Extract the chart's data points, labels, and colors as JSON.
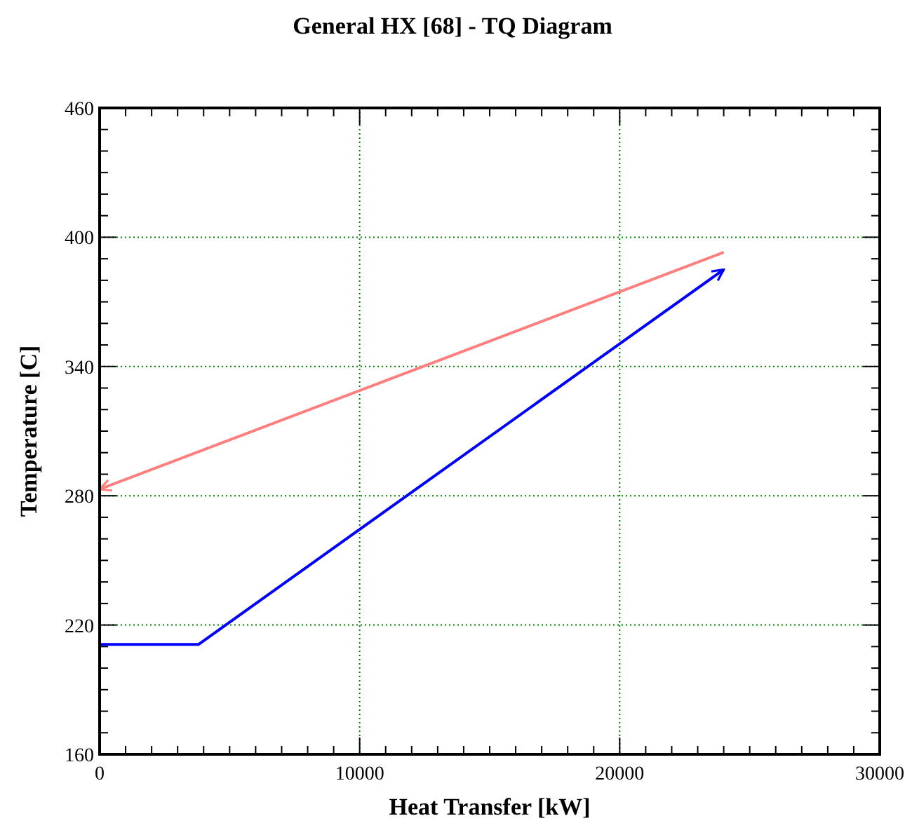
{
  "chart_data": {
    "type": "line",
    "title": "General HX [68]  - TQ Diagram",
    "xlabel": "Heat Transfer [kW]",
    "ylabel": "Temperature [C]",
    "xlim": [
      0,
      30000
    ],
    "xticks": [
      0,
      10000,
      20000,
      30000
    ],
    "ylim": [
      160,
      460
    ],
    "yticks": [
      160,
      220,
      280,
      340,
      400,
      460
    ],
    "grid": true,
    "line_style": "solid",
    "series": [
      {
        "color": "#ff7f7f",
        "x": [
          24000,
          0
        ],
        "values": [
          393,
          283
        ]
      },
      {
        "color": "#0000ff",
        "x": [
          0,
          3800,
          24000
        ],
        "values": [
          211,
          211,
          385
        ]
      }
    ]
  }
}
